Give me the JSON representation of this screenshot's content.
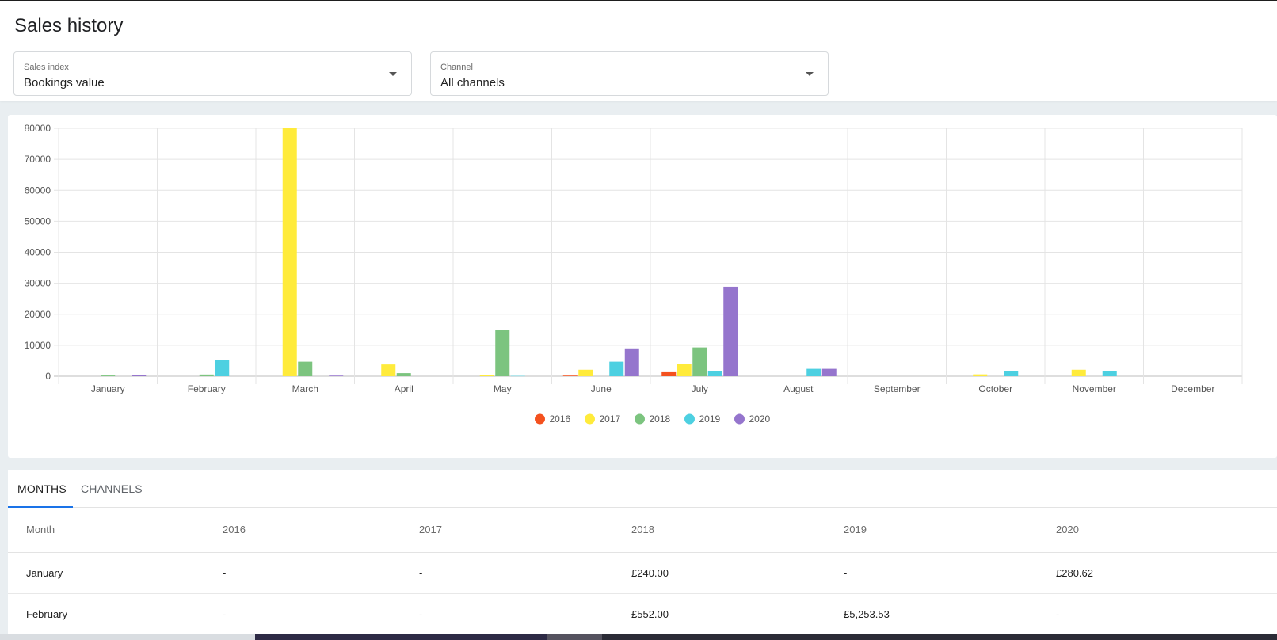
{
  "page": {
    "title": "Sales history"
  },
  "filters": {
    "sales_index": {
      "label": "Sales index",
      "value": "Bookings value"
    },
    "channel": {
      "label": "Channel",
      "value": "All channels"
    }
  },
  "chart_data": {
    "type": "bar",
    "title": "",
    "xlabel": "",
    "ylabel": "",
    "ylim": [
      0,
      80000
    ],
    "y_ticks": [
      0,
      10000,
      20000,
      30000,
      40000,
      50000,
      60000,
      70000,
      80000
    ],
    "grid": true,
    "legend_position": "bottom",
    "categories": [
      "January",
      "February",
      "March",
      "April",
      "May",
      "June",
      "July",
      "August",
      "September",
      "October",
      "November",
      "December"
    ],
    "series": [
      {
        "name": "2016",
        "color": "#f4511e",
        "values": [
          0,
          0,
          0,
          0,
          0,
          200,
          1300,
          0,
          0,
          0,
          0,
          0
        ]
      },
      {
        "name": "2017",
        "color": "#ffeb3b",
        "values": [
          0,
          0,
          80000,
          3800,
          300,
          2100,
          4000,
          0,
          0,
          600,
          2100,
          0
        ]
      },
      {
        "name": "2018",
        "color": "#7cc47f",
        "values": [
          240,
          552,
          4700,
          1000,
          15000,
          0,
          9300,
          0,
          0,
          0,
          0,
          0
        ]
      },
      {
        "name": "2019",
        "color": "#4dd0e1",
        "values": [
          0,
          5253.53,
          0,
          0,
          100,
          4700,
          1700,
          2400,
          0,
          1700,
          1600,
          0
        ]
      },
      {
        "name": "2020",
        "color": "#9575cd",
        "values": [
          280.62,
          0,
          200,
          0,
          0,
          9000,
          28900,
          2400,
          0,
          0,
          0,
          0
        ]
      }
    ]
  },
  "tabs": [
    {
      "label": "MONTHS",
      "active": true
    },
    {
      "label": "CHANNELS",
      "active": false
    }
  ],
  "table": {
    "headers": [
      "Month",
      "2016",
      "2017",
      "2018",
      "2019",
      "2020"
    ],
    "rows": [
      [
        "January",
        "-",
        "-",
        "£240.00",
        "-",
        "£280.62"
      ],
      [
        "February",
        "-",
        "-",
        "£552.00",
        "£5,253.53",
        "-"
      ]
    ]
  },
  "colors": {
    "accent": "#1a73e8",
    "background": "#e9eef1"
  }
}
